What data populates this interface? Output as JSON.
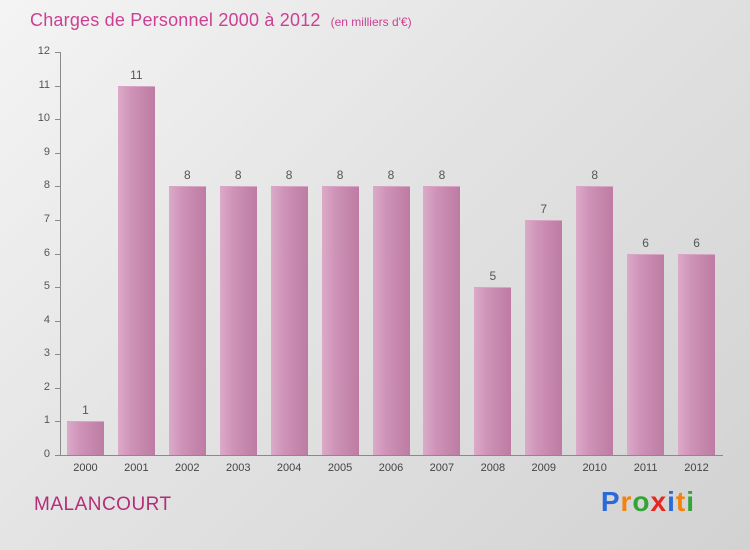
{
  "header": {
    "title": "Charges de Personnel 2000 à 2012",
    "subtitle": "(en milliers d'€)"
  },
  "footer": {
    "commune": "MALANCOURT"
  },
  "logo": {
    "name": "Proxiti",
    "letters": [
      {
        "char": "P",
        "color": "#2b6bd9"
      },
      {
        "char": "r",
        "color": "#f5820b"
      },
      {
        "char": "o",
        "color": "#35a436"
      },
      {
        "char": "x",
        "color": "#e8251f"
      },
      {
        "char": "i",
        "color": "#2b6bd9"
      },
      {
        "char": "t",
        "color": "#f5820b"
      },
      {
        "char": "i",
        "color": "#35a436"
      }
    ]
  },
  "chart_data": {
    "type": "bar",
    "title": "Charges de Personnel 2000 à 2012",
    "subtitle": "(en milliers d'€)",
    "categories": [
      "2000",
      "2001",
      "2002",
      "2003",
      "2004",
      "2005",
      "2006",
      "2007",
      "2008",
      "2009",
      "2010",
      "2011",
      "2012"
    ],
    "values": [
      1,
      11,
      8,
      8,
      8,
      8,
      8,
      8,
      5,
      7,
      8,
      6,
      6
    ],
    "xlabel": "",
    "ylabel": "",
    "ylim": [
      0,
      12
    ],
    "ytick_step": 1,
    "grid": false,
    "legend_position": "none",
    "bar_color": "#c98bb0",
    "title_color": "#cc3f93",
    "commune_color": "#b52d78"
  }
}
